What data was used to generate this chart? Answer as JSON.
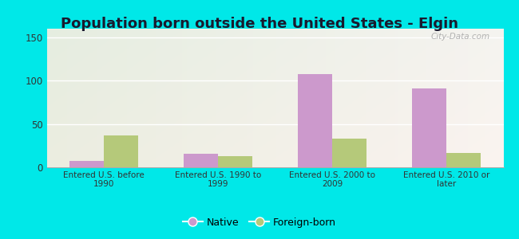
{
  "title": "Population born outside the United States - Elgin",
  "categories": [
    "Entered U.S. before\n1990",
    "Entered U.S. 1990 to\n1999",
    "Entered U.S. 2000 to\n2009",
    "Entered U.S. 2010 or\nlater"
  ],
  "native_values": [
    7,
    16,
    108,
    91
  ],
  "foreign_values": [
    37,
    13,
    33,
    17
  ],
  "native_color": "#cc99cc",
  "foreign_color": "#b5c97a",
  "ylim": [
    0,
    160
  ],
  "yticks": [
    0,
    50,
    100,
    150
  ],
  "background_outer": "#00e8e8",
  "watermark": "City-Data.com",
  "legend_native": "Native",
  "legend_foreign": "Foreign-born",
  "title_fontsize": 13,
  "bar_width": 0.3
}
